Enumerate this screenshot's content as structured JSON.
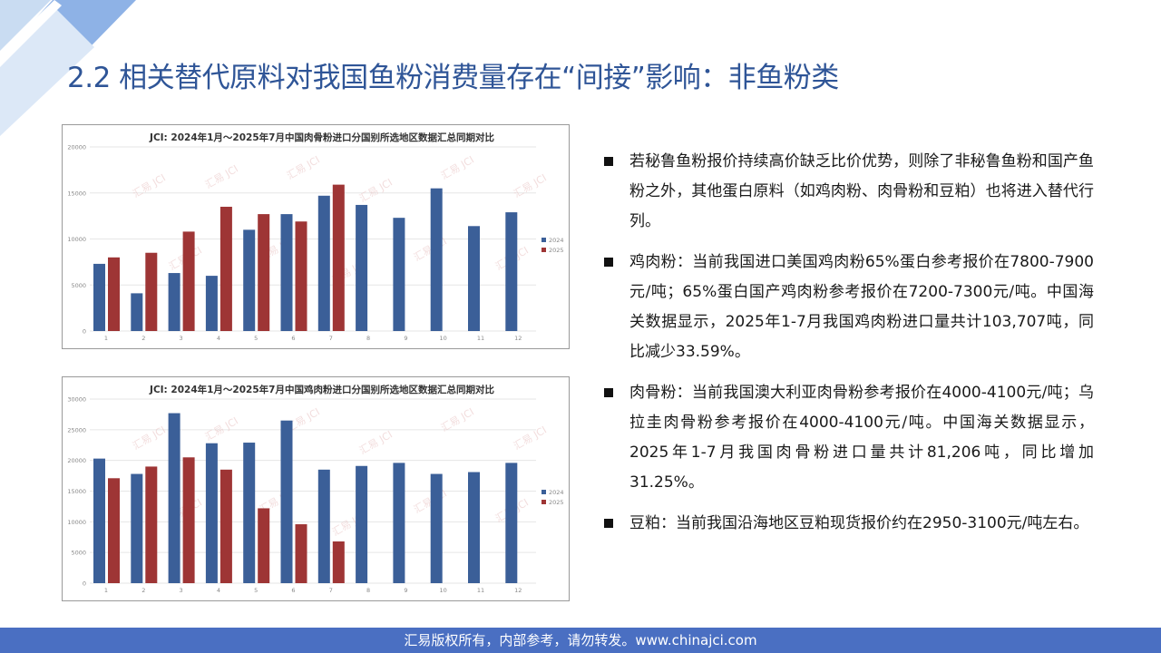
{
  "slide": {
    "title": "2.2 相关替代原料对我国鱼粉消费量存在“间接”影响：非鱼粉类",
    "footer": "汇易版权所有，内部参考，请勿转发。www.chinajci.com",
    "colors": {
      "title": "#2f5597",
      "footer_bg": "#4a6fc2",
      "series_2024": "#3b5f98",
      "series_2025": "#9e3535"
    }
  },
  "bullets": [
    {
      "text": "若秘鲁鱼粉报价持续高价缺乏比价优势，则除了非秘鲁鱼粉和国产鱼粉之外，其他蛋白原料（如鸡肉粉、肉骨粉和豆粕）也将进入替代行列。"
    },
    {
      "text": "鸡肉粉：当前我国进口美国鸡肉粉65%蛋白参考报价在7800-7900元/吨；65%蛋白国产鸡肉粉参考报价在7200-7300元/吨。中国海关数据显示，2025年1-7月我国鸡肉粉进口量共计103,707吨，同比减少33.59%。"
    },
    {
      "text": "肉骨粉：当前我国澳大利亚肉骨粉参考报价在4000-4100元/吨；乌拉圭肉骨粉参考报价在4000-4100元/吨。中国海关数据显示，2025年1-7月我国肉骨粉进口量共计81,206吨，同比增加31.25%。"
    },
    {
      "text": "豆粕：当前我国沿海地区豆粕现货报价约在2950-3100元/吨左右。"
    }
  ],
  "chart_data": [
    {
      "type": "bar",
      "title": "JCI: 2024年1月～2025年7月中国肉骨粉进口分国别所选地区数据汇总同期对比",
      "categories": [
        "1",
        "2",
        "3",
        "4",
        "5",
        "6",
        "7",
        "8",
        "9",
        "10",
        "11",
        "12"
      ],
      "series": [
        {
          "name": "2024",
          "values": [
            7300,
            4100,
            6300,
            6000,
            11000,
            12700,
            14700,
            13700,
            12300,
            15500,
            11400,
            12900
          ]
        },
        {
          "name": "2025",
          "values": [
            8000,
            8500,
            10800,
            13500,
            12700,
            11900,
            15900,
            null,
            null,
            null,
            null,
            null
          ]
        }
      ],
      "yticks": [
        "0",
        "5000",
        "10000",
        "15000",
        "20000"
      ],
      "ylim": [
        0,
        20000
      ],
      "legend": "right",
      "grid": true,
      "watermark": "汇易 JCI"
    },
    {
      "type": "bar",
      "title": "JCI: 2024年1月～2025年7月中国鸡肉粉进口分国别所选地区数据汇总同期对比",
      "categories": [
        "1",
        "2",
        "3",
        "4",
        "5",
        "6",
        "7",
        "8",
        "9",
        "10",
        "11",
        "12"
      ],
      "series": [
        {
          "name": "2024",
          "values": [
            20300,
            17800,
            27700,
            22800,
            22900,
            26500,
            18500,
            19100,
            19600,
            17800,
            18100,
            19600
          ]
        },
        {
          "name": "2025",
          "values": [
            17100,
            19000,
            20500,
            18500,
            12200,
            9600,
            6800,
            null,
            null,
            null,
            null,
            null
          ]
        }
      ],
      "yticks": [
        "0",
        "5000",
        "10000",
        "15000",
        "20000",
        "25000",
        "30000"
      ],
      "ylim": [
        0,
        30000
      ],
      "legend": "right",
      "grid": true,
      "watermark": "汇易 JCI"
    }
  ]
}
